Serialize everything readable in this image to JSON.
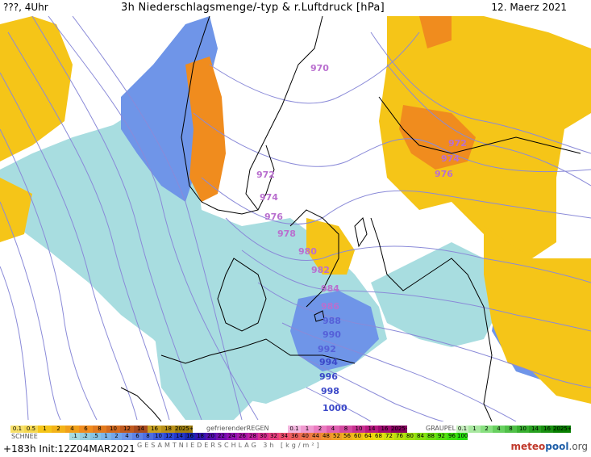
{
  "header": {
    "left": "???, 4Uhr",
    "center": "3h Niederschlagsmenge/-typ & r.Luftdruck [hPa]",
    "right": "12. Maerz 2021"
  },
  "map": {
    "isobar_labels_pink": [
      "970",
      "972",
      "974",
      "976",
      "978",
      "980",
      "982",
      "984",
      "986",
      "972",
      "974",
      "976"
    ],
    "isobar_labels_blue": [
      "988",
      "990",
      "992",
      "994",
      "996",
      "998",
      "1000"
    ],
    "colors": {
      "rain_yellow": "#f5c518",
      "rain_orange": "#f08c1e",
      "snow_lightblue": "#a8dde0",
      "mix_blue": "#6f95e8",
      "isobar": "#8a8ad8",
      "coast": "#000000"
    }
  },
  "legend": {
    "rain_ticks": [
      "0.1",
      "0.5",
      "1",
      "2",
      "4",
      "6",
      "8",
      "10",
      "12",
      "14",
      "16",
      "18",
      "2025+"
    ],
    "freezing_rain_title": "gefrierenderREGEN",
    "freezing_rain_ticks": [
      "0.1",
      "1",
      "2",
      "4",
      "8",
      "10",
      "14",
      "16",
      "2025+"
    ],
    "graupel_title": "GRAUPEL",
    "graupel_ticks": [
      "0.1",
      "1",
      "2",
      "4",
      "8",
      "10",
      "14",
      "16",
      "2025+"
    ],
    "snow_title": "SCHNEE",
    "snow_ticks": [
      ".1",
      ".2",
      ".5",
      "1",
      "2",
      "4",
      "6",
      "8",
      "10",
      "12",
      "14",
      "16",
      "18",
      "20",
      "22",
      "24",
      "26",
      "28",
      "30",
      "32",
      "34",
      "36",
      "40",
      "44",
      "48",
      "52",
      "56",
      "60",
      "64",
      "68",
      "72",
      "76",
      "80",
      "84",
      "88",
      "92",
      "96",
      "100"
    ],
    "total_title": "GESAMTNIEDERSCHLAG 3h [kg/m²]"
  },
  "footer": {
    "run_info": "+183h Init:12Z04MAR2021",
    "logo_part1": "meteo",
    "logo_part2": "pool",
    "logo_part3": ".org"
  }
}
